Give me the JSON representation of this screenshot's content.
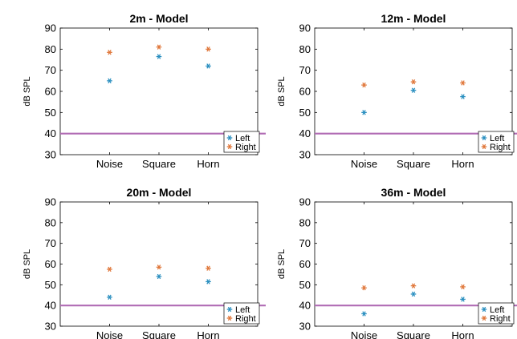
{
  "colors": {
    "left": "#2a8fc0",
    "right": "#e0773a",
    "threshold_line": "#b06bb4",
    "axes": "#000000"
  },
  "chart_data": [
    {
      "type": "scatter",
      "title": "2m - Model",
      "ylabel": "dB SPL",
      "categories": [
        "Noise",
        "Square",
        "Horn"
      ],
      "ylim": [
        30,
        90
      ],
      "yticks": [
        30,
        40,
        50,
        60,
        70,
        80,
        90
      ],
      "reference_line": 40,
      "legend_position": "bottom-right",
      "series": [
        {
          "name": "Left",
          "marker": "*",
          "values": [
            65,
            76.5,
            72
          ]
        },
        {
          "name": "Right",
          "marker": "*",
          "values": [
            78.5,
            81,
            80
          ]
        }
      ]
    },
    {
      "type": "scatter",
      "title": "12m - Model",
      "ylabel": "dB SPL",
      "categories": [
        "Noise",
        "Square",
        "Horn"
      ],
      "ylim": [
        30,
        90
      ],
      "yticks": [
        30,
        40,
        50,
        60,
        70,
        80,
        90
      ],
      "reference_line": 40,
      "legend_position": "bottom-right",
      "series": [
        {
          "name": "Left",
          "marker": "*",
          "values": [
            50,
            60.5,
            57.5
          ]
        },
        {
          "name": "Right",
          "marker": "*",
          "values": [
            63,
            64.5,
            64
          ]
        }
      ]
    },
    {
      "type": "scatter",
      "title": "20m - Model",
      "ylabel": "dB SPL",
      "categories": [
        "Noise",
        "Square",
        "Horn"
      ],
      "ylim": [
        30,
        90
      ],
      "yticks": [
        30,
        40,
        50,
        60,
        70,
        80,
        90
      ],
      "reference_line": 40,
      "legend_position": "bottom-right",
      "series": [
        {
          "name": "Left",
          "marker": "*",
          "values": [
            44,
            54,
            51.5
          ]
        },
        {
          "name": "Right",
          "marker": "*",
          "values": [
            57.5,
            58.5,
            58
          ]
        }
      ]
    },
    {
      "type": "scatter",
      "title": "36m - Model",
      "ylabel": "dB SPL",
      "categories": [
        "Noise",
        "Square",
        "Horn"
      ],
      "ylim": [
        30,
        90
      ],
      "yticks": [
        30,
        40,
        50,
        60,
        70,
        80,
        90
      ],
      "reference_line": 40,
      "legend_position": "bottom-right",
      "series": [
        {
          "name": "Left",
          "marker": "*",
          "values": [
            36,
            45.5,
            43
          ]
        },
        {
          "name": "Right",
          "marker": "*",
          "values": [
            48.5,
            49.5,
            49
          ]
        }
      ]
    }
  ]
}
